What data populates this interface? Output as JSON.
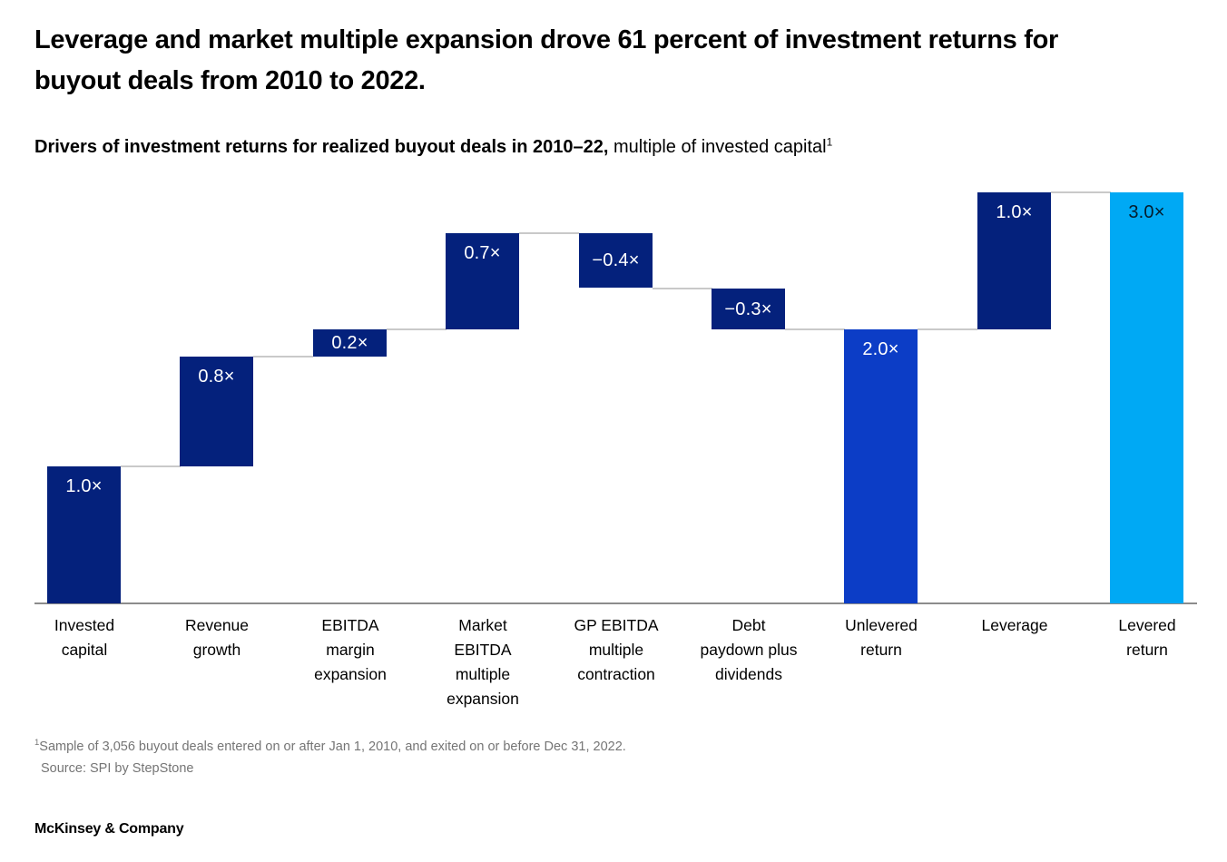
{
  "header": {
    "title": "Leverage and market multiple expansion drove 61 percent of investment returns for buyout deals from 2010 to 2022.",
    "subtitle_bold": "Drivers of investment returns for realized buyout deals in 2010–22,",
    "subtitle_regular": " multiple of invested capital",
    "subtitle_footnote_marker": "1"
  },
  "chart_data": {
    "type": "bar",
    "subtype": "waterfall",
    "title": "Drivers of investment returns for realized buyout deals in 2010–22",
    "ylabel": "multiple of invested capital",
    "unit": "×",
    "ylim": [
      0,
      3.0
    ],
    "grid": false,
    "legend": "none",
    "categories": [
      "Invested capital",
      "Revenue growth",
      "EBITDA margin expansion",
      "Market EBITDA multiple expansion",
      "GP EBITDA multiple contraction",
      "Debt paydown plus dividends",
      "Unlevered return",
      "Leverage",
      "Levered return"
    ],
    "values": [
      1.0,
      0.8,
      0.2,
      0.7,
      -0.4,
      -0.3,
      2.0,
      1.0,
      3.0
    ],
    "colors": {
      "dark_navy": "#04217c",
      "royal_blue": "#0c3dc6",
      "cyan": "#00a9f4",
      "white": "#ffffff",
      "dark_text": "#051c2c",
      "connector": "#c9c9c9",
      "axis": "#8c8c8c"
    },
    "bars": [
      {
        "category": "Invested capital",
        "category_lines": [
          "Invested",
          "capital"
        ],
        "value": 1.0,
        "value_label": "1.0×",
        "start": 0,
        "end": 1.0,
        "role": "base",
        "color": "dark_navy",
        "value_color": "white"
      },
      {
        "category": "Revenue growth",
        "category_lines": [
          "Revenue",
          "growth"
        ],
        "value": 0.8,
        "value_label": "0.8×",
        "start": 1.0,
        "end": 1.8,
        "role": "increase",
        "color": "dark_navy",
        "value_color": "white"
      },
      {
        "category": "EBITDA margin expansion",
        "category_lines": [
          "EBITDA",
          "margin",
          "expansion"
        ],
        "value": 0.2,
        "value_label": "0.2×",
        "start": 1.8,
        "end": 2.0,
        "role": "increase",
        "color": "dark_navy",
        "value_color": "white"
      },
      {
        "category": "Market EBITDA multiple expansion",
        "category_lines": [
          "Market",
          "EBITDA",
          "multiple",
          "expansion"
        ],
        "value": 0.7,
        "value_label": "0.7×",
        "start": 2.0,
        "end": 2.7,
        "role": "increase",
        "color": "dark_navy",
        "value_color": "white"
      },
      {
        "category": "GP EBITDA multiple contraction",
        "category_lines": [
          "GP EBITDA",
          "multiple",
          "contraction"
        ],
        "value": -0.4,
        "value_label": "−0.4×",
        "start": 2.7,
        "end": 2.3,
        "role": "decrease",
        "color": "dark_navy",
        "value_color": "white"
      },
      {
        "category": "Debt paydown plus dividends",
        "category_lines": [
          "Debt",
          "paydown plus",
          "dividends"
        ],
        "value": -0.3,
        "value_label": "−0.3×",
        "start": 2.3,
        "end": 2.0,
        "role": "decrease",
        "color": "dark_navy",
        "value_color": "white"
      },
      {
        "category": "Unlevered return",
        "category_lines": [
          "Unlevered",
          "return"
        ],
        "value": 2.0,
        "value_label": "2.0×",
        "start": 0,
        "end": 2.0,
        "role": "subtotal",
        "color": "royal_blue",
        "value_color": "white"
      },
      {
        "category": "Leverage",
        "category_lines": [
          "Leverage"
        ],
        "value": 1.0,
        "value_label": "1.0×",
        "start": 2.0,
        "end": 3.0,
        "role": "increase",
        "color": "dark_navy",
        "value_color": "white"
      },
      {
        "category": "Levered return",
        "category_lines": [
          "Levered",
          "return"
        ],
        "value": 3.0,
        "value_label": "3.0×",
        "start": 0,
        "end": 3.0,
        "role": "total",
        "color": "cyan",
        "value_color": "dark_text"
      }
    ]
  },
  "footnote": {
    "marker": "1",
    "line1": "Sample of 3,056 buyout deals entered on or after Jan 1, 2010, and exited on or before Dec 31, 2022.",
    "line2": "Source: SPI by StepStone"
  },
  "footer": {
    "brand": "McKinsey & Company"
  }
}
